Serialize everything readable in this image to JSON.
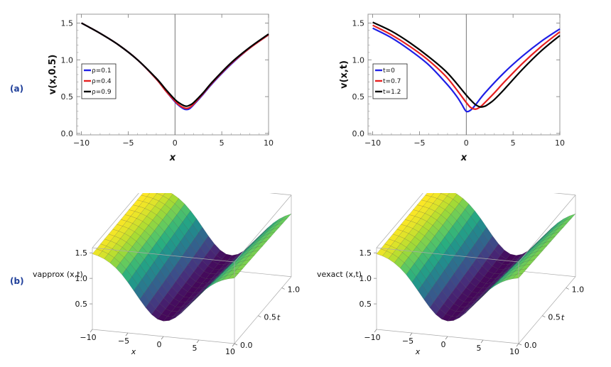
{
  "panel_labels": {
    "a": "(a)",
    "b": "(b)"
  },
  "chart_data": [
    {
      "type": "line",
      "xlabel": "x",
      "ylabel": "v(x,0.5)",
      "xlim": [
        -10.5,
        10
      ],
      "ylim": [
        -0.02,
        1.62
      ],
      "xticks": [
        "-10",
        "-5",
        "0",
        "5",
        "10"
      ],
      "yticks": [
        "0.0",
        "0.5",
        "1.0",
        "1.5"
      ],
      "legend_position": "left",
      "grid": false,
      "series": [
        {
          "name": "ρ=0.1",
          "color": "#1f1fe6",
          "x": [
            -10,
            -8,
            -6,
            -4,
            -2,
            -1,
            0,
            0.5,
            1,
            1.3,
            1.6,
            2,
            3,
            4,
            6,
            8,
            10
          ],
          "y": [
            1.5,
            1.36,
            1.2,
            1.0,
            0.74,
            0.58,
            0.43,
            0.37,
            0.33,
            0.325,
            0.34,
            0.39,
            0.53,
            0.68,
            0.94,
            1.16,
            1.34
          ]
        },
        {
          "name": "ρ=0.4",
          "color": "#e61f1f",
          "x": [
            -10,
            -8,
            -6,
            -4,
            -2,
            -1,
            0,
            0.5,
            1,
            1.3,
            1.6,
            2,
            3,
            4,
            6,
            8,
            10
          ],
          "y": [
            1.5,
            1.36,
            1.2,
            1.0,
            0.74,
            0.58,
            0.44,
            0.38,
            0.345,
            0.34,
            0.355,
            0.4,
            0.54,
            0.69,
            0.95,
            1.16,
            1.34
          ]
        },
        {
          "name": "ρ=0.9",
          "color": "#000000",
          "x": [
            -10,
            -8,
            -6,
            -4,
            -2,
            -1,
            0,
            0.5,
            1,
            1.3,
            1.6,
            2,
            3,
            4,
            6,
            8,
            10
          ],
          "y": [
            1.5,
            1.36,
            1.2,
            1.0,
            0.75,
            0.6,
            0.46,
            0.41,
            0.375,
            0.37,
            0.385,
            0.42,
            0.55,
            0.7,
            0.96,
            1.17,
            1.35
          ]
        }
      ]
    },
    {
      "type": "line",
      "xlabel": "x",
      "ylabel": "v(x,t)",
      "xlim": [
        -10.5,
        10
      ],
      "ylim": [
        -0.02,
        1.62
      ],
      "xticks": [
        "-10",
        "-5",
        "0",
        "5",
        "10"
      ],
      "yticks": [
        "0.0",
        "0.5",
        "1.0",
        "1.5"
      ],
      "legend_position": "left",
      "grid": false,
      "series": [
        {
          "name": "t=0",
          "color": "#1f1fe6",
          "x": [
            -10,
            -8,
            -6,
            -4,
            -2,
            -1,
            -0.5,
            0,
            0.5,
            1,
            2,
            4,
            6,
            8,
            10
          ],
          "y": [
            1.43,
            1.3,
            1.13,
            0.93,
            0.66,
            0.5,
            0.4,
            0.3,
            0.32,
            0.39,
            0.55,
            0.82,
            1.05,
            1.25,
            1.42
          ]
        },
        {
          "name": "t=0.7",
          "color": "#e61f1f",
          "x": [
            -10,
            -8,
            -6,
            -4,
            -2,
            0,
            0.5,
            1,
            1.5,
            2,
            3,
            4,
            6,
            8,
            10
          ],
          "y": [
            1.47,
            1.34,
            1.18,
            0.99,
            0.75,
            0.42,
            0.35,
            0.33,
            0.36,
            0.42,
            0.55,
            0.69,
            0.95,
            1.18,
            1.38
          ]
        },
        {
          "name": "t=1.2",
          "color": "#000000",
          "x": [
            -10,
            -8,
            -6,
            -4,
            -2,
            0,
            0.5,
            1,
            1.5,
            2,
            2.5,
            3,
            4,
            6,
            8,
            10
          ],
          "y": [
            1.51,
            1.39,
            1.23,
            1.04,
            0.82,
            0.52,
            0.45,
            0.39,
            0.36,
            0.37,
            0.41,
            0.46,
            0.59,
            0.87,
            1.12,
            1.33
          ]
        }
      ]
    },
    {
      "type": "surface",
      "zlabel": "vapprox (x,t)",
      "xlabel": "x",
      "ylabel": "t",
      "x_range": [
        -10,
        10
      ],
      "t_range": [
        0,
        1.2
      ],
      "xticks": [
        "-10",
        "-5",
        "0",
        "5",
        "10"
      ],
      "tticks": [
        "0.0",
        "0.5",
        "1.0"
      ],
      "zticks": [
        "0.5",
        "1.0",
        "1.5"
      ],
      "colormap": "viridis"
    },
    {
      "type": "surface",
      "zlabel": "vexact (x,t)",
      "xlabel": "x",
      "ylabel": "t",
      "x_range": [
        -10,
        10
      ],
      "t_range": [
        0,
        1.2
      ],
      "xticks": [
        "-10",
        "-5",
        "0",
        "5",
        "10"
      ],
      "tticks": [
        "0.0",
        "0.5",
        "1.0"
      ],
      "zticks": [
        "0.5",
        "1.0",
        "1.5"
      ],
      "colormap": "viridis"
    }
  ]
}
